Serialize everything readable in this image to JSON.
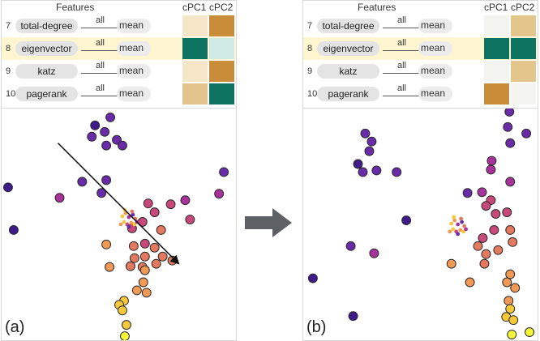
{
  "header": {
    "features": "Features",
    "cpc1": "cPC1",
    "cpc2": "cPC2"
  },
  "agg": {
    "all": "all",
    "mean": "mean"
  },
  "panels": [
    {
      "label": "(a)",
      "rows": [
        {
          "num": "7",
          "feature": "total-degree",
          "cpc1": "#f5e6c8",
          "cpc2": "#c98d3a",
          "selected": false
        },
        {
          "num": "8",
          "feature": "eigenvector",
          "cpc1": "#0e7360",
          "cpc2": "#cfeae4",
          "selected": true
        },
        {
          "num": "9",
          "feature": "katz",
          "cpc1": "#f5e6c8",
          "cpc2": "#c98d3a",
          "selected": false
        },
        {
          "num": "10",
          "feature": "pagerank",
          "cpc1": "#e2c48c",
          "cpc2": "#0e7360",
          "selected": false
        }
      ]
    },
    {
      "label": "(b)",
      "rows": [
        {
          "num": "7",
          "feature": "total-degree",
          "cpc1": "#f3f3f0",
          "cpc2": "#e3c68c",
          "selected": false
        },
        {
          "num": "8",
          "feature": "eigenvector",
          "cpc1": "#0e7360",
          "cpc2": "#0e7360",
          "selected": true
        },
        {
          "num": "9",
          "feature": "katz",
          "cpc1": "#f3f3f0",
          "cpc2": "#e3c68c",
          "selected": false
        },
        {
          "num": "10",
          "feature": "pagerank",
          "cpc1": "#c98d3a",
          "cpc2": "#f3f3f0",
          "selected": false
        }
      ]
    }
  ],
  "colors": {
    "dark_purple": "#3e1a8a",
    "purple": "#6a2ba8",
    "magenta": "#a8329c",
    "pink": "#c9487a",
    "salmon": "#e47960",
    "orange": "#f29a55",
    "yellow": "#f7c93a",
    "bright_yellow": "#f5f53a",
    "arrow_gray": "#5d6166"
  }
}
